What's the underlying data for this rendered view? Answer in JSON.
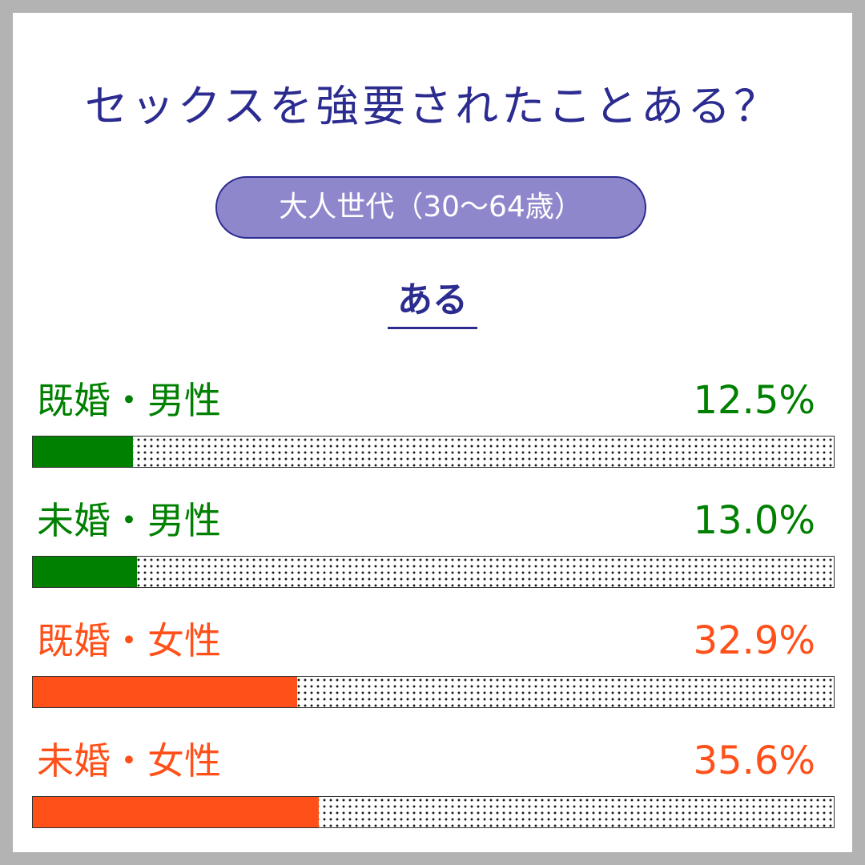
{
  "colors": {
    "title": "#2b2b90",
    "pill_bg": "#8f87cc",
    "male": "#008000",
    "female": "#ff5019"
  },
  "title": "セックスを強要されたことある？",
  "group_label": "大人世代（30〜64歳）",
  "answer_label": "ある",
  "chart_data": {
    "type": "bar",
    "orientation": "horizontal",
    "categories": [
      "既婚・男性",
      "未婚・男性",
      "既婚・女性",
      "未婚・女性"
    ],
    "values": [
      12.5,
      13.0,
      32.9,
      35.6
    ],
    "value_labels": [
      "12.5%",
      "13.0%",
      "32.9%",
      "35.6%"
    ],
    "xlim": [
      0,
      100
    ],
    "title": "セックスを強要されたことある？",
    "subtitle": "大人世代（30〜64歳）",
    "grid": false
  }
}
